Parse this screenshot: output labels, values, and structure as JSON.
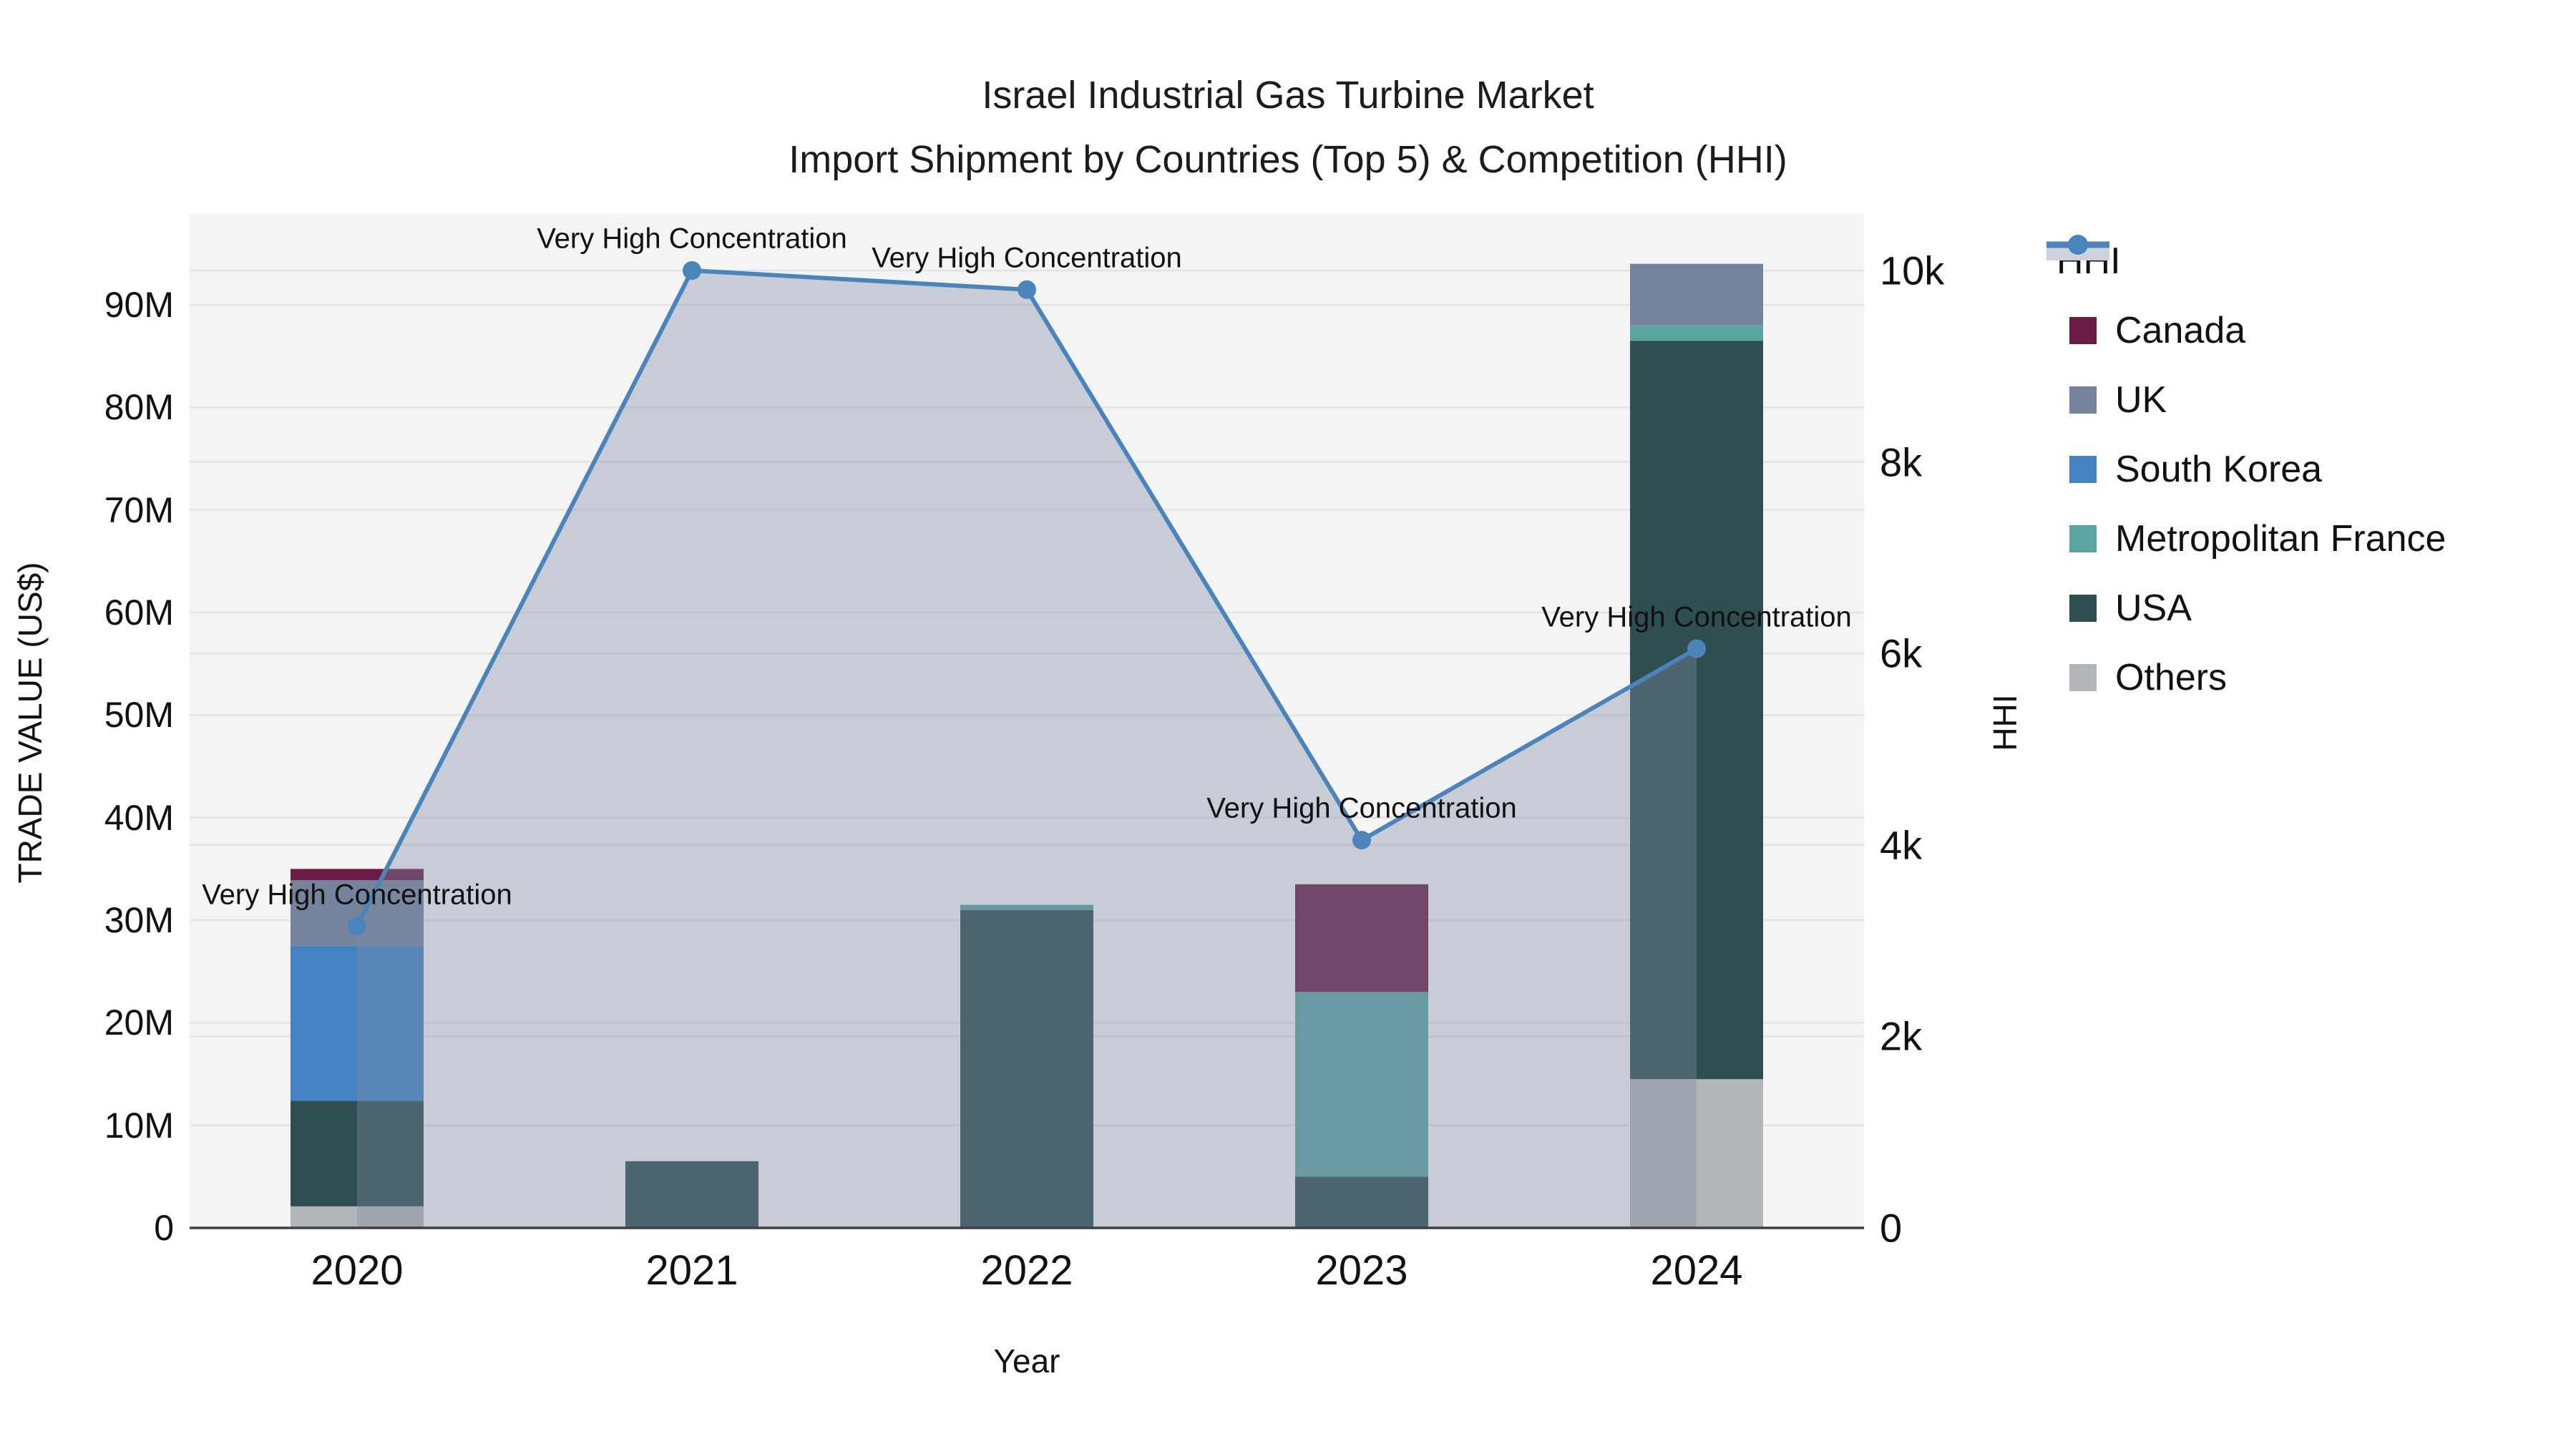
{
  "title": {
    "line1": "Israel Industrial Gas Turbine Market",
    "line2": "Import Shipment by Countries (Top 5) & Competition (HHI)"
  },
  "axes": {
    "y_left": {
      "title": "TRADE VALUE (US$)",
      "ticks": [
        "0",
        "10M",
        "20M",
        "30M",
        "40M",
        "50M",
        "60M",
        "70M",
        "80M",
        "90M"
      ],
      "tick_values": [
        0,
        10,
        20,
        30,
        40,
        50,
        60,
        70,
        80,
        90
      ]
    },
    "y_right": {
      "title": "HHI",
      "ticks": [
        "0",
        "2k",
        "4k",
        "6k",
        "8k",
        "10k"
      ],
      "tick_values": [
        0,
        2000,
        4000,
        6000,
        8000,
        10000
      ]
    },
    "x": {
      "title": "Year",
      "categories": [
        "2020",
        "2021",
        "2022",
        "2023",
        "2024"
      ]
    }
  },
  "legend": {
    "items": [
      {
        "label": "HHI",
        "type": "line",
        "color": "#4a84ba"
      },
      {
        "label": "Canada",
        "type": "box",
        "color": "#6B1C44"
      },
      {
        "label": "UK",
        "type": "box",
        "color": "#75849C"
      },
      {
        "label": "South Korea",
        "type": "box",
        "color": "#4483C1"
      },
      {
        "label": "Metropolitan France",
        "type": "box",
        "color": "#5CA4A2"
      },
      {
        "label": "USA",
        "type": "box",
        "color": "#2E4E4F"
      },
      {
        "label": "Others",
        "type": "box",
        "color": "#B3B6B8"
      }
    ]
  },
  "colors": {
    "plot_bg": "#f4f4f4",
    "grid": "#e4e4e7",
    "axis_line": "#3f3f3f",
    "hhi_line": "#4a84ba",
    "hhi_fill": "rgba(126,140,169,0.38)"
  },
  "chart_data": {
    "type": "bar+line combo (stacked bars, left axis; HHI line with area fill, right axis)",
    "categories": [
      "2020",
      "2021",
      "2022",
      "2023",
      "2024"
    ],
    "values_unit": "Million US$",
    "stack_order_bottom_to_top": [
      "Others",
      "USA",
      "South Korea",
      "Metropolitan France",
      "UK",
      "Canada"
    ],
    "bar_series": [
      {
        "name": "Others",
        "color": "#B3B6B8",
        "values": [
          2.1,
          0,
          0,
          0,
          14.5
        ]
      },
      {
        "name": "USA",
        "color": "#2E4E4F",
        "values": [
          10.3,
          6.5,
          31.0,
          5.0,
          72.0
        ]
      },
      {
        "name": "South Korea",
        "color": "#4483C1",
        "values": [
          15.1,
          0,
          0,
          0,
          0
        ]
      },
      {
        "name": "Metropolitan France",
        "color": "#5CA4A2",
        "values": [
          0,
          0,
          0.5,
          18.0,
          1.5
        ]
      },
      {
        "name": "UK",
        "color": "#75849C",
        "values": [
          6.4,
          0,
          0,
          0,
          6.0
        ]
      },
      {
        "name": "Canada",
        "color": "#6B1C44",
        "values": [
          1.1,
          0,
          0,
          10.5,
          0
        ]
      }
    ],
    "bar_totals_musd": [
      35.0,
      6.5,
      31.5,
      33.5,
      94.0
    ],
    "line_series": {
      "name": "HHI",
      "axis": "right",
      "color": "#4a84ba",
      "values": [
        3150,
        10000,
        9800,
        4050,
        6050
      ]
    },
    "annotations": [
      "Very High Concentration",
      "Very High Concentration",
      "Very High Concentration",
      "Very High Concentration",
      "Very High Concentration"
    ],
    "y_left_range_musd": [
      0,
      98.7
    ],
    "y_right_range": [
      0,
      10560
    ],
    "grid": true,
    "legend_position": "right"
  }
}
